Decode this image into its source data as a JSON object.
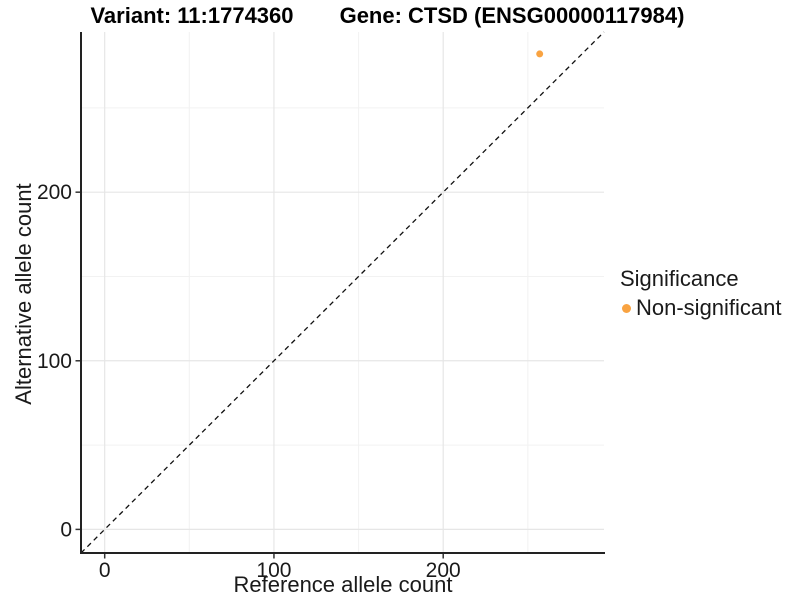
{
  "titles": {
    "variant": "Variant: 11:1774360",
    "gene": "Gene: CTSD (ENSG00000117984)"
  },
  "axes": {
    "x_label": "Reference allele count",
    "y_label": "Alternative allele count"
  },
  "legend": {
    "title": "Significance",
    "items": [
      {
        "label": "Non-significant",
        "color": "#F9A341"
      }
    ]
  },
  "colors": {
    "point_orange": "#F9A341",
    "grid_major": "#E6E6E6",
    "grid_minor": "#F2F2F2",
    "axis_line": "#222222",
    "tick_mark": "#333333",
    "tick_text": "#1A1A1A",
    "ref_line": "#111111",
    "background": "#FFFFFF"
  },
  "chart_data": {
    "type": "scatter",
    "title": "Variant: 11:1774360   Gene: CTSD (ENSG00000117984)",
    "xlabel": "Reference allele count",
    "ylabel": "Alternative allele count",
    "xlim": [
      -14,
      295
    ],
    "ylim": [
      -14,
      295
    ],
    "x_ticks": [
      0,
      100,
      200
    ],
    "y_ticks": [
      0,
      100,
      200
    ],
    "x_minor_ticks": [
      50,
      150,
      250
    ],
    "y_minor_ticks": [
      50,
      150,
      250
    ],
    "grid": true,
    "legend_position": "right",
    "points": [
      {
        "x": 257,
        "y": 282,
        "series": "Non-significant",
        "color": "#F9A341"
      }
    ],
    "reference_line": {
      "slope": 1,
      "intercept": 0,
      "style": "dashed",
      "color": "#111111",
      "meaning": "identity y = x"
    },
    "series": [
      {
        "name": "Non-significant",
        "color": "#F9A341",
        "values": [
          [
            257,
            282
          ]
        ]
      }
    ]
  }
}
